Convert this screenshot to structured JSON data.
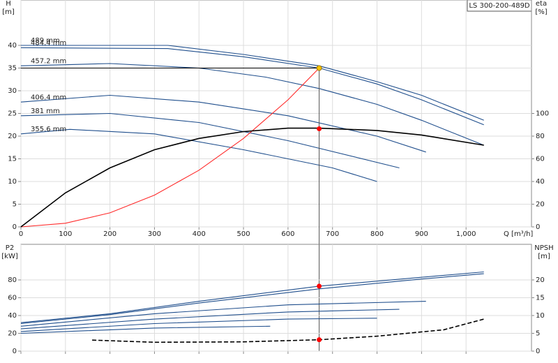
{
  "chart_data": [
    {
      "type": "line",
      "title": "LS 300-200-489D",
      "y_label": "H",
      "y_unit": "[m]",
      "y2_label": "eta",
      "y2_unit": "[%]",
      "x_label": "Q [m³/h]",
      "xlim": [
        0,
        1147
      ],
      "ylim": [
        0,
        50
      ],
      "y2lim": [
        0,
        200
      ],
      "grid": true,
      "xticks": [
        0,
        100,
        200,
        300,
        400,
        500,
        600,
        700,
        800,
        900,
        {
          "value": 1000,
          "label": "1,000"
        }
      ],
      "yticks": [
        0,
        5,
        10,
        15,
        20,
        25,
        30,
        35,
        40
      ],
      "y2ticks": [
        0,
        20,
        40,
        60,
        80,
        100
      ],
      "series": [
        {
          "name": "489 mm",
          "color": "#1f4e8c",
          "x": [
            0,
            330,
            500,
            670,
            800,
            900,
            1040
          ],
          "values": [
            40,
            40,
            38,
            35.5,
            32,
            29,
            23.5
          ]
        },
        {
          "name": "484.4 mm",
          "color": "#1f4e8c",
          "x": [
            0,
            330,
            500,
            670,
            800,
            900,
            1040
          ],
          "values": [
            39.5,
            39.3,
            37.5,
            35,
            31.5,
            28,
            22.5
          ]
        },
        {
          "name": "457.2 mm",
          "color": "#1f4e8c",
          "x": [
            0,
            200,
            400,
            550,
            670,
            800,
            900,
            1040
          ],
          "values": [
            35.5,
            36,
            35,
            33,
            30.5,
            27,
            23.5,
            18
          ]
        },
        {
          "name": "406.4 mm",
          "color": "#1f4e8c",
          "x": [
            0,
            200,
            400,
            600,
            800,
            910
          ],
          "values": [
            27.5,
            29,
            27.5,
            24.5,
            20,
            16.5
          ]
        },
        {
          "name": "381 mm",
          "color": "#1f4e8c",
          "x": [
            0,
            200,
            400,
            600,
            850
          ],
          "values": [
            24.5,
            25,
            23,
            19,
            13
          ]
        },
        {
          "name": "355.6 mm",
          "color": "#1f4e8c",
          "x": [
            0,
            110,
            300,
            500,
            700,
            800
          ],
          "values": [
            20.5,
            21.5,
            20.5,
            17,
            13,
            10
          ]
        },
        {
          "color": "#ff2a2a",
          "x": [
            0,
            100,
            200,
            300,
            400,
            500,
            600,
            670
          ],
          "values": [
            0,
            0.8,
            3.1,
            7,
            12.5,
            19.5,
            28,
            35
          ]
        },
        {
          "color": "#000000",
          "axis": "y2",
          "x": [
            0,
            100,
            200,
            300,
            400,
            500,
            600,
            670,
            800,
            900,
            1040
          ],
          "values": [
            0,
            30,
            52,
            68,
            78,
            84,
            87,
            87,
            85,
            81,
            72
          ]
        },
        {
          "color": "#f5c400",
          "marker": true,
          "guide": true,
          "x": [
            670
          ],
          "values": [
            35
          ]
        },
        {
          "color": "#ff0000",
          "marker": true,
          "axis": "y2",
          "x": [
            670
          ],
          "values": [
            86.5
          ]
        }
      ]
    },
    {
      "type": "line",
      "y_label": "P2",
      "y_unit": "[kW]",
      "y2_label": "NPSH",
      "y2_unit": "[m]",
      "xlim": [
        0,
        1147
      ],
      "ylim": [
        0,
        120
      ],
      "y2lim": [
        0,
        30
      ],
      "grid": true,
      "xticks": [
        0,
        100,
        200,
        300,
        400,
        500,
        600,
        700,
        800,
        900,
        1000
      ],
      "yticks": [
        0,
        20,
        40,
        60,
        80
      ],
      "y2ticks": [
        0,
        5,
        10,
        15,
        20
      ],
      "series": [
        {
          "color": "#1f4e8c",
          "x": [
            0,
            200,
            400,
            670,
            900,
            1040
          ],
          "values": [
            32,
            42,
            56,
            73,
            83,
            89
          ]
        },
        {
          "color": "#1f4e8c",
          "x": [
            0,
            200,
            400,
            670,
            900,
            1040
          ],
          "values": [
            31,
            41,
            54,
            70,
            81,
            87
          ]
        },
        {
          "color": "#1f4e8c",
          "x": [
            0,
            300,
            600,
            910
          ],
          "values": [
            28,
            42,
            52,
            56
          ]
        },
        {
          "color": "#1f4e8c",
          "x": [
            0,
            300,
            600,
            850
          ],
          "values": [
            25,
            36,
            44,
            47
          ]
        },
        {
          "color": "#1f4e8c",
          "x": [
            0,
            300,
            600,
            800
          ],
          "values": [
            22,
            31,
            36,
            37
          ]
        },
        {
          "color": "#1f4e8c",
          "x": [
            0,
            300,
            560
          ],
          "values": [
            20,
            26,
            28
          ]
        },
        {
          "color": "#000000",
          "axis": "y2",
          "dash": true,
          "x": [
            160,
            300,
            500,
            670,
            800,
            950,
            1040
          ],
          "values": [
            3.1,
            2.5,
            2.6,
            3.2,
            4.2,
            6,
            9
          ]
        },
        {
          "color": "#ff0000",
          "marker": true,
          "x": [
            670
          ],
          "values": [
            73
          ]
        },
        {
          "color": "#ff0000",
          "marker": true,
          "axis": "y2",
          "x": [
            670
          ],
          "values": [
            3.2
          ]
        }
      ]
    }
  ]
}
